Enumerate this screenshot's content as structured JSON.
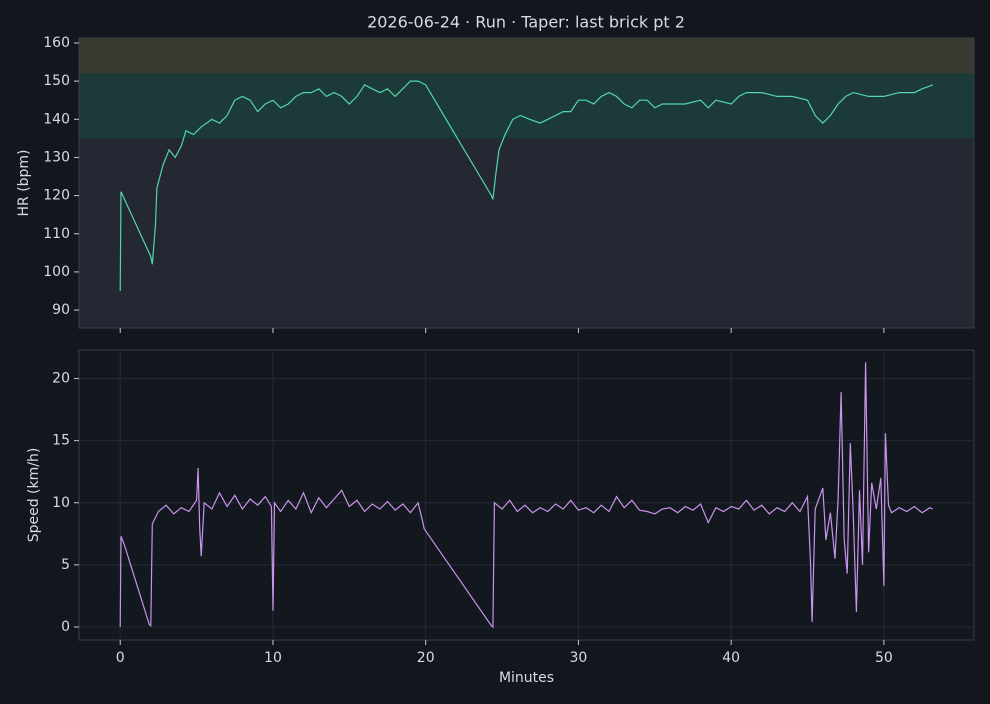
{
  "title": "2026-06-24 · Run · Taper: last brick pt 2",
  "chart_data": [
    {
      "type": "line",
      "ylabel": "HR (bpm)",
      "xlim": [
        -2.7,
        55.9
      ],
      "ylim": [
        85.3,
        161.3
      ],
      "xticks": [
        0,
        10,
        20,
        30,
        40,
        50
      ],
      "show_xtick_labels": false,
      "yticks": [
        90,
        100,
        110,
        120,
        130,
        140,
        150,
        160
      ],
      "grid": false,
      "bands": [
        {
          "from": 135,
          "to": 152,
          "color": "#1c3a37"
        },
        {
          "from": 152,
          "to": 161.3,
          "color": "#393a31"
        }
      ],
      "x": [
        0,
        0.05,
        2,
        2.1,
        2.3,
        2.4,
        2.8,
        3.2,
        3.6,
        4,
        4.3,
        4.8,
        5.3,
        6,
        6.5,
        7,
        7.5,
        8,
        8.5,
        9,
        9.5,
        10,
        10.5,
        11,
        11.5,
        12,
        12.5,
        13,
        13.5,
        14,
        14.5,
        15,
        15.5,
        16,
        16.5,
        17,
        17.5,
        18,
        18.5,
        19,
        19.5,
        20,
        24.3,
        24.4,
        24.6,
        24.8,
        25.2,
        25.7,
        26.2,
        26.8,
        27.5,
        28,
        29,
        29.5,
        30,
        30.5,
        31,
        31.5,
        32,
        32.5,
        33,
        33.5,
        34,
        34.5,
        35,
        35.5,
        36,
        37,
        38,
        38.5,
        39,
        40,
        40.5,
        41,
        42,
        43,
        44,
        45,
        45.5,
        46,
        46.5,
        47,
        47.5,
        48,
        49,
        50,
        51,
        52,
        52.5,
        53.2
      ],
      "series": [
        {
          "name": "HR",
          "color": "#52d6ad",
          "values": [
            95,
            121,
            104,
            102,
            112,
            122,
            128,
            132,
            130,
            133,
            137,
            136,
            138,
            140,
            139,
            141,
            145,
            146,
            145,
            142,
            144,
            145,
            143,
            144,
            146,
            147,
            147,
            148,
            146,
            147,
            146,
            144,
            146,
            149,
            148,
            147,
            148,
            146,
            148,
            150,
            150,
            149,
            120,
            119,
            126,
            132,
            136,
            140,
            141,
            140,
            139,
            140,
            142,
            142,
            145,
            145,
            144,
            146,
            147,
            146,
            144,
            143,
            145,
            145,
            143,
            144,
            144,
            144,
            145,
            143,
            145,
            144,
            146,
            147,
            147,
            146,
            146,
            145,
            141,
            139,
            141,
            144,
            146,
            147,
            146,
            146,
            147,
            147,
            148,
            149
          ]
        }
      ]
    },
    {
      "type": "line",
      "xlabel": "Minutes",
      "ylabel": "Speed (km/h)",
      "xlim": [
        -2.7,
        55.9
      ],
      "ylim": [
        -1.05,
        22.3
      ],
      "xticks": [
        0,
        10,
        20,
        30,
        40,
        50
      ],
      "show_xtick_labels": true,
      "yticks": [
        0,
        5,
        10,
        15,
        20
      ],
      "grid": true,
      "x": [
        0,
        0.05,
        0.3,
        1.9,
        2,
        2.1,
        2.5,
        3,
        3.5,
        4,
        4.5,
        5,
        5.1,
        5.2,
        5.3,
        5.5,
        6,
        6.5,
        7,
        7.5,
        8,
        8.5,
        9,
        9.5,
        9.9,
        10,
        10.1,
        10.5,
        11,
        11.5,
        12,
        12.5,
        13,
        13.5,
        14,
        14.5,
        15,
        15.5,
        16,
        16.5,
        17,
        17.5,
        18,
        18.5,
        19,
        19.5,
        19.8,
        19.9,
        24.3,
        24.4,
        24.5,
        25,
        25.5,
        26,
        26.5,
        27,
        27.5,
        28,
        28.5,
        29,
        29.5,
        30,
        30.5,
        31,
        31.5,
        32,
        32.5,
        33,
        33.5,
        34,
        34.5,
        35,
        35.5,
        36,
        36.5,
        37,
        37.5,
        38,
        38.5,
        39,
        39.5,
        40,
        40.5,
        41,
        41.5,
        42,
        42.5,
        43,
        43.5,
        44,
        44.5,
        45,
        45.2,
        45.3,
        45.5,
        46,
        46.2,
        46.5,
        46.8,
        47,
        47.2,
        47.4,
        47.6,
        47.8,
        48,
        48.2,
        48.4,
        48.6,
        48.8,
        49,
        49.2,
        49.5,
        49.8,
        50,
        50.1,
        50.3,
        50.5,
        51,
        51.5,
        52,
        52.5,
        53,
        53.2
      ],
      "series": [
        {
          "name": "Speed",
          "color": "#c994ec",
          "values": [
            0,
            7.3,
            6.5,
            0.2,
            0.1,
            8.3,
            9.3,
            9.8,
            9.1,
            9.6,
            9.3,
            10.2,
            12.8,
            8,
            5.7,
            10,
            9.5,
            10.8,
            9.7,
            10.6,
            9.5,
            10.3,
            9.8,
            10.5,
            9.7,
            1.3,
            10,
            9.3,
            10.2,
            9.5,
            10.8,
            9.2,
            10.4,
            9.6,
            10.3,
            11,
            9.7,
            10.2,
            9.3,
            9.9,
            9.5,
            10.1,
            9.4,
            9.9,
            9.2,
            10,
            8.5,
            7.9,
            0.1,
            0,
            10,
            9.5,
            10.2,
            9.3,
            9.8,
            9.2,
            9.6,
            9.3,
            9.9,
            9.5,
            10.2,
            9.4,
            9.6,
            9.2,
            9.8,
            9.3,
            10.5,
            9.6,
            10.2,
            9.4,
            9.3,
            9.1,
            9.5,
            9.6,
            9.2,
            9.7,
            9.4,
            9.9,
            8.4,
            9.6,
            9.3,
            9.7,
            9.5,
            10.2,
            9.4,
            9.8,
            9.1,
            9.6,
            9.3,
            10,
            9.3,
            10.5,
            5,
            0.4,
            9.5,
            11.2,
            7,
            9.2,
            5.5,
            10.3,
            18.9,
            7,
            4.3,
            14.8,
            9,
            1.2,
            11,
            5,
            21.3,
            6,
            11.6,
            9.5,
            12,
            3.3,
            15.6,
            9.8,
            9.2,
            9.6,
            9.3,
            9.7,
            9.2,
            9.6,
            9.5
          ]
        }
      ]
    }
  ]
}
